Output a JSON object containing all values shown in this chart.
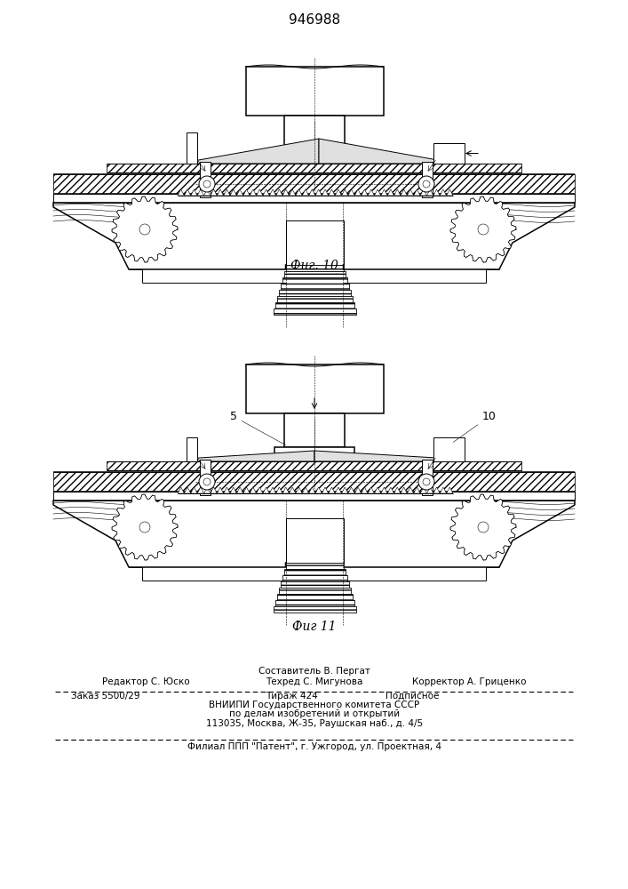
{
  "title_number": "946988",
  "fig1_label": "Фиг. 10",
  "fig2_label": "Фиг 11",
  "fig2_num_5": "5",
  "fig2_num_10": "10",
  "footer_line1": "Составитель В. Пергат",
  "footer_editor": "Редактор С. Юско",
  "footer_techr": "Техред С. Мигунова",
  "footer_corr": "Корректор А. Гриценко",
  "footer_order": "Заказ 5500/29",
  "footer_tirazh": "Тираж 424",
  "footer_podp": "Подписное",
  "footer_vniip": "ВНИИПИ Государственного комитета СССР",
  "footer_po": "по делам изобретений и открытий",
  "footer_addr": "113035, Москва, Ж-35, Раушская наб., д. 4/5",
  "footer_filial": "Филиал ППП \"Патент\", г. Ужгород, ул. Проектная, 4",
  "bg_color": "#ffffff"
}
